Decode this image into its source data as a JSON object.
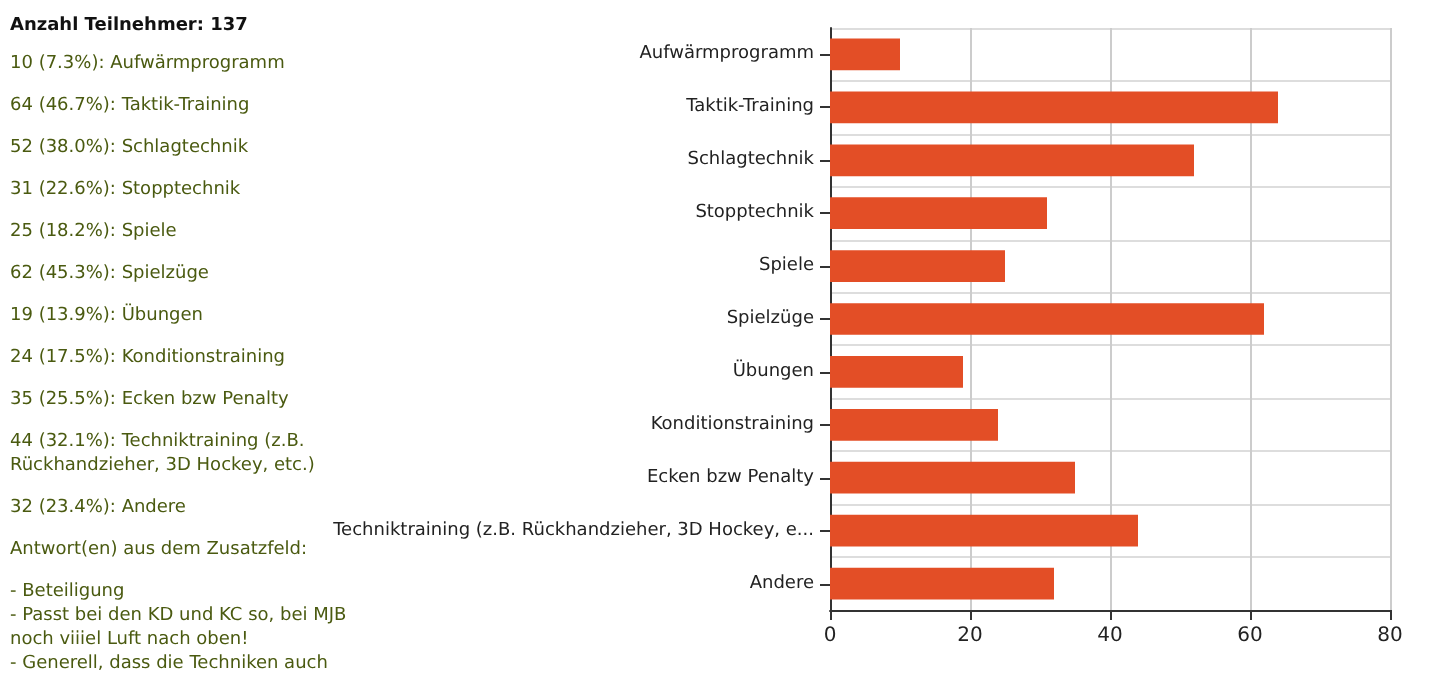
{
  "chart_data": {
    "type": "bar",
    "orientation": "horizontal",
    "title": "Anzahl Teilnehmer: 137",
    "categories": [
      "Aufwärmprogramm",
      "Taktik-Training",
      "Schlagtechnik",
      "Stopptechnik",
      "Spiele",
      "Spielzüge",
      "Übungen",
      "Konditionstraining",
      "Ecken bzw Penalty",
      "Techniktraining (z.B. Rückhandzieher, 3D Hockey, e...",
      "Andere"
    ],
    "values": [
      10,
      64,
      52,
      31,
      25,
      62,
      19,
      24,
      35,
      44,
      32
    ],
    "color": "#e34e26",
    "xlim": [
      0,
      80
    ],
    "xticks": [
      0,
      20,
      40,
      60,
      80
    ],
    "grid": true,
    "annotations": [
      "10 (7.3%): Aufwärmprogramm",
      "64 (46.7%): Taktik-Training",
      "52 (38.0%): Schlagtechnik",
      "31 (22.6%): Stopptechnik",
      "25 (18.2%): Spiele",
      "62 (45.3%): Spielzüge",
      "19 (13.9%): Übungen",
      "24 (17.5%): Konditionstraining",
      "35 (25.5%): Ecken bzw Penalty",
      "44 (32.1%): Techniktraining (z.B. Rückhandzieher, 3D Hockey, etc.)",
      "32 (23.4%): Andere",
      "Antwort(en) aus dem Zusatzfeld:",
      "- Beteiligung",
      "- Passt bei den KD und KC so, bei MJB noch viiiel Luft nach oben!",
      "- Generell, dass die Techniken auch"
    ]
  }
}
